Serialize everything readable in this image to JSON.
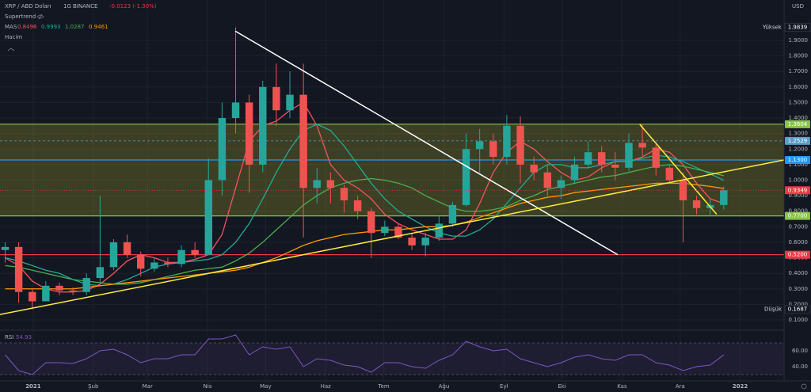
{
  "chart_data": {
    "type": "candlestick",
    "symbol": "XRP / ABD Doları",
    "interval": "1G",
    "exchange": "BINANCE",
    "change": "-0.0123 (-1.30%)",
    "currency": "USD",
    "supertrend_label": "Supertrend",
    "ma_label": "MAS",
    "volume_label": "Hacim",
    "high_label": "Yüksek",
    "low_label": "Düşük",
    "up_color": "#26a69a",
    "down_color": "#ef5350",
    "categories": [
      null,
      null,
      null,
      null,
      null,
      null,
      null,
      null,
      null,
      null,
      null,
      null,
      null,
      null,
      null,
      null,
      null,
      null,
      null,
      null,
      null,
      null,
      null,
      null,
      null,
      null,
      null,
      null,
      null,
      null,
      null,
      null,
      null,
      null,
      null,
      null,
      null,
      null,
      null,
      null,
      null,
      null,
      null,
      null,
      null,
      null,
      null,
      null,
      null,
      null,
      null,
      null,
      null,
      null
    ],
    "open": [
      0.55,
      0.57,
      0.28,
      0.22,
      0.32,
      0.29,
      0.28,
      0.37,
      0.44,
      0.6,
      0.52,
      0.43,
      0.47,
      0.46,
      0.55,
      0.52,
      1.0,
      1.4,
      1.5,
      1.1,
      1.6,
      1.45,
      1.55,
      0.95,
      1.0,
      0.95,
      0.87,
      0.8,
      0.66,
      0.7,
      0.63,
      0.58,
      0.63,
      0.72,
      0.84,
      1.2,
      1.25,
      1.15,
      1.35,
      1.1,
      1.05,
      0.95,
      1.0,
      1.1,
      1.18,
      1.1,
      1.08,
      1.24,
      1.21,
      1.08,
      1.0,
      0.87,
      0.82,
      0.84
    ],
    "high": [
      0.6,
      0.6,
      0.3,
      0.35,
      0.34,
      0.31,
      0.4,
      0.9,
      0.62,
      0.65,
      0.54,
      0.5,
      0.5,
      0.58,
      0.6,
      1.14,
      1.5,
      1.9839,
      1.55,
      1.64,
      1.75,
      1.7,
      1.75,
      1.08,
      1.05,
      0.97,
      0.9,
      0.82,
      0.74,
      0.72,
      0.66,
      0.66,
      0.77,
      0.86,
      1.3,
      1.33,
      1.3,
      1.42,
      1.41,
      1.15,
      1.1,
      1.03,
      1.15,
      1.25,
      1.22,
      1.18,
      1.3,
      1.36,
      1.23,
      1.1,
      1.05,
      0.9,
      0.88,
      0.96
    ],
    "low": [
      0.47,
      0.21,
      0.1687,
      0.22,
      0.26,
      0.26,
      0.26,
      0.34,
      0.42,
      0.5,
      0.38,
      0.41,
      0.44,
      0.44,
      0.5,
      0.52,
      0.9,
      1.3,
      0.92,
      1.05,
      1.35,
      1.4,
      0.63,
      0.85,
      0.85,
      0.79,
      0.75,
      0.5,
      0.64,
      0.62,
      0.55,
      0.51,
      0.61,
      0.7,
      0.83,
      1.05,
      1.1,
      1.1,
      0.98,
      1.0,
      0.9,
      0.88,
      0.98,
      1.08,
      1.05,
      1.0,
      1.06,
      1.15,
      1.03,
      0.98,
      0.6,
      0.78,
      0.77,
      0.81
    ],
    "close": [
      0.57,
      0.28,
      0.22,
      0.32,
      0.29,
      0.28,
      0.37,
      0.44,
      0.6,
      0.52,
      0.43,
      0.47,
      0.46,
      0.55,
      0.52,
      1.0,
      1.4,
      1.5,
      1.1,
      1.6,
      1.45,
      1.55,
      0.95,
      1.0,
      0.95,
      0.87,
      0.8,
      0.66,
      0.7,
      0.63,
      0.58,
      0.63,
      0.72,
      0.84,
      1.2,
      1.25,
      1.15,
      1.35,
      1.1,
      1.05,
      0.95,
      1.0,
      1.1,
      1.18,
      1.1,
      1.08,
      1.24,
      1.21,
      1.08,
      1.0,
      0.87,
      0.82,
      0.84,
      0.9349
    ],
    "last_price_color": "#f23645",
    "xlim": [
      -0.38,
      57.45
    ],
    "ylim": [
      0.0439,
      2.16
    ],
    "xticks": [
      {
        "value": 2.07,
        "label": "2021"
      },
      {
        "value": 6.5,
        "label": "Şub"
      },
      {
        "value": 10.5,
        "label": "Mar"
      },
      {
        "value": 14.93,
        "label": "Nis"
      },
      {
        "value": 19.21,
        "label": "May"
      },
      {
        "value": 23.64,
        "label": "Haz"
      },
      {
        "value": 27.93,
        "label": "Tem"
      },
      {
        "value": 32.36,
        "label": "Ağu"
      },
      {
        "value": 36.79,
        "label": "Eyl"
      },
      {
        "value": 41.07,
        "label": "Eki"
      },
      {
        "value": 45.5,
        "label": "Kas"
      },
      {
        "value": 49.79,
        "label": "Ara"
      },
      {
        "value": 54.21,
        "label": "2022"
      }
    ],
    "yticks": [
      {
        "value": 0.1,
        "label": "0.1000"
      },
      {
        "value": 0.2,
        "label": "0.2000"
      },
      {
        "value": 0.3,
        "label": "0.3000"
      },
      {
        "value": 0.4,
        "label": "0.4000"
      },
      {
        "value": 0.5,
        "label": "0.5000"
      },
      {
        "value": 0.6,
        "label": "0.6000"
      },
      {
        "value": 0.7,
        "label": "0.7000"
      },
      {
        "value": 0.8,
        "label": "0.8000"
      },
      {
        "value": 0.9,
        "label": "0.9000"
      },
      {
        "value": 1.0,
        "label": "1.0000"
      },
      {
        "value": 1.1,
        "label": "1.1000"
      },
      {
        "value": 1.2,
        "label": "1.2000"
      },
      {
        "value": 1.3,
        "label": "1.3000"
      },
      {
        "value": 1.4,
        "label": "1.4000"
      },
      {
        "value": 1.5,
        "label": "1.5000"
      },
      {
        "value": 1.6,
        "label": "1.6000"
      },
      {
        "value": 1.7,
        "label": "1.7000"
      },
      {
        "value": 1.8,
        "label": "1.8000"
      },
      {
        "value": 1.9,
        "label": "1.9000"
      }
    ],
    "grid": true,
    "moving_averages": [
      {
        "color": "#f7525f",
        "values": [
          0.5,
          0.45,
          0.35,
          0.3,
          0.28,
          0.28,
          0.29,
          0.33,
          0.4,
          0.48,
          0.52,
          0.5,
          0.47,
          0.47,
          0.49,
          0.52,
          0.65,
          0.95,
          1.25,
          1.35,
          1.38,
          1.45,
          1.5,
          1.35,
          1.1,
          1.0,
          0.95,
          0.88,
          0.78,
          0.72,
          0.68,
          0.65,
          0.62,
          0.62,
          0.68,
          0.85,
          1.05,
          1.18,
          1.25,
          1.2,
          1.12,
          1.05,
          1.0,
          1.02,
          1.08,
          1.12,
          1.12,
          1.15,
          1.2,
          1.18,
          1.1,
          0.98,
          0.88,
          0.8496
        ]
      },
      {
        "color": "#22ab94",
        "values": [
          0.5,
          0.48,
          0.45,
          0.42,
          0.4,
          0.36,
          0.33,
          0.32,
          0.33,
          0.36,
          0.4,
          0.44,
          0.46,
          0.47,
          0.48,
          0.49,
          0.52,
          0.6,
          0.72,
          0.88,
          1.05,
          1.2,
          1.32,
          1.36,
          1.32,
          1.22,
          1.1,
          0.98,
          0.88,
          0.8,
          0.75,
          0.7,
          0.66,
          0.64,
          0.64,
          0.68,
          0.75,
          0.85,
          0.95,
          1.05,
          1.1,
          1.1,
          1.08,
          1.08,
          1.1,
          1.12,
          1.12,
          1.14,
          1.16,
          1.15,
          1.12,
          1.08,
          1.04,
          0.9993
        ]
      },
      {
        "color": "#4caf50",
        "values": [
          0.45,
          0.44,
          0.42,
          0.4,
          0.38,
          0.36,
          0.35,
          0.34,
          0.33,
          0.33,
          0.34,
          0.36,
          0.38,
          0.4,
          0.42,
          0.43,
          0.44,
          0.48,
          0.53,
          0.6,
          0.68,
          0.76,
          0.84,
          0.9,
          0.95,
          0.98,
          1.0,
          1.01,
          1.0,
          0.98,
          0.95,
          0.9,
          0.86,
          0.82,
          0.8,
          0.8,
          0.81,
          0.83,
          0.87,
          0.9,
          0.94,
          0.96,
          0.98,
          1.0,
          1.02,
          1.03,
          1.05,
          1.07,
          1.09,
          1.1,
          1.09,
          1.07,
          1.05,
          1.0287
        ]
      },
      {
        "color": "#ff9800",
        "values": [
          0.3,
          0.3,
          0.3,
          0.3,
          0.3,
          0.3,
          0.31,
          0.32,
          0.33,
          0.34,
          0.35,
          0.36,
          0.37,
          0.38,
          0.39,
          0.4,
          0.41,
          0.42,
          0.44,
          0.47,
          0.5,
          0.54,
          0.58,
          0.61,
          0.63,
          0.65,
          0.66,
          0.67,
          0.68,
          0.68,
          0.69,
          0.7,
          0.7,
          0.71,
          0.73,
          0.76,
          0.79,
          0.82,
          0.85,
          0.87,
          0.89,
          0.9,
          0.92,
          0.93,
          0.94,
          0.95,
          0.96,
          0.97,
          0.98,
          0.98,
          0.98,
          0.97,
          0.96,
          0.9461
        ]
      }
    ],
    "zone": {
      "low": {
        "value": 0.77,
        "label": "0.7700"
      },
      "high": 1.3604,
      "color": "rgba(170,170,40,0.28)",
      "border": "#8bc34a"
    },
    "levels": [
      {
        "value": 1.2529,
        "color": "#5b9cc8",
        "dashed": true
      },
      {
        "value": {
          "value": 1.13,
          "label": "1.1300"
        },
        "color": "#2196f3",
        "dashed": false
      },
      {
        "value": {
          "value": 0.52,
          "label": "0.5200"
        },
        "color": "#f23645",
        "dashed": false
      }
    ],
    "trendlines": [
      {
        "x": [
          16.97,
          45.18
        ],
        "y": [
          1.96,
          0.52
        ],
        "color": "#ffffff"
      },
      {
        "x": [
          -0.38,
          57.45
        ],
        "y": [
          0.135,
          1.13
        ],
        "color": "#ffeb3b"
      },
      {
        "x": [
          46.8,
          52.48
        ],
        "y": [
          1.36,
          0.78
        ],
        "color": "#ffeb3b"
      }
    ],
    "rsi": {
      "name": "RSI",
      "color": "#7e57c2",
      "ylim": [
        23,
        83
      ],
      "yticks": [
        {
          "value": 60,
          "label": "60.00"
        },
        {
          "value": 40,
          "label": "40.00"
        }
      ],
      "bands": [
        30,
        70
      ],
      "values": [
        55,
        35,
        30,
        45,
        45,
        44,
        50,
        60,
        62,
        55,
        45,
        50,
        50,
        55,
        55,
        75,
        75,
        80,
        55,
        65,
        62,
        65,
        40,
        50,
        48,
        42,
        40,
        33,
        45,
        45,
        40,
        38,
        48,
        55,
        72,
        65,
        60,
        62,
        50,
        45,
        40,
        45,
        52,
        55,
        50,
        48,
        55,
        55,
        45,
        42,
        35,
        40,
        42,
        54.93
      ]
    }
  }
}
